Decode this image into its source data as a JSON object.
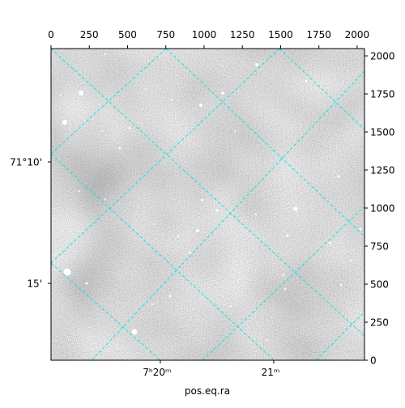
{
  "chart_data": {
    "type": "image",
    "xlabel": "pos.eq.ra",
    "xlim": [
      0,
      2048
    ],
    "xticks": [
      0,
      250,
      500,
      750,
      1000,
      1250,
      1500,
      1750,
      2000
    ],
    "ylim": [
      0,
      2048
    ],
    "yticks": [
      0,
      250,
      500,
      750,
      1000,
      1250,
      1500,
      1750,
      2000
    ],
    "ra_ticks": [
      {
        "value": 714,
        "label": "7ʰ20ᵐ"
      },
      {
        "value": 1455,
        "label": "21ᵐ"
      }
    ],
    "dec_ticks": [
      {
        "value": 1303,
        "label": "71°10'"
      },
      {
        "value": 505,
        "label": "15'"
      }
    ],
    "grid_color": "#00e5e5"
  }
}
